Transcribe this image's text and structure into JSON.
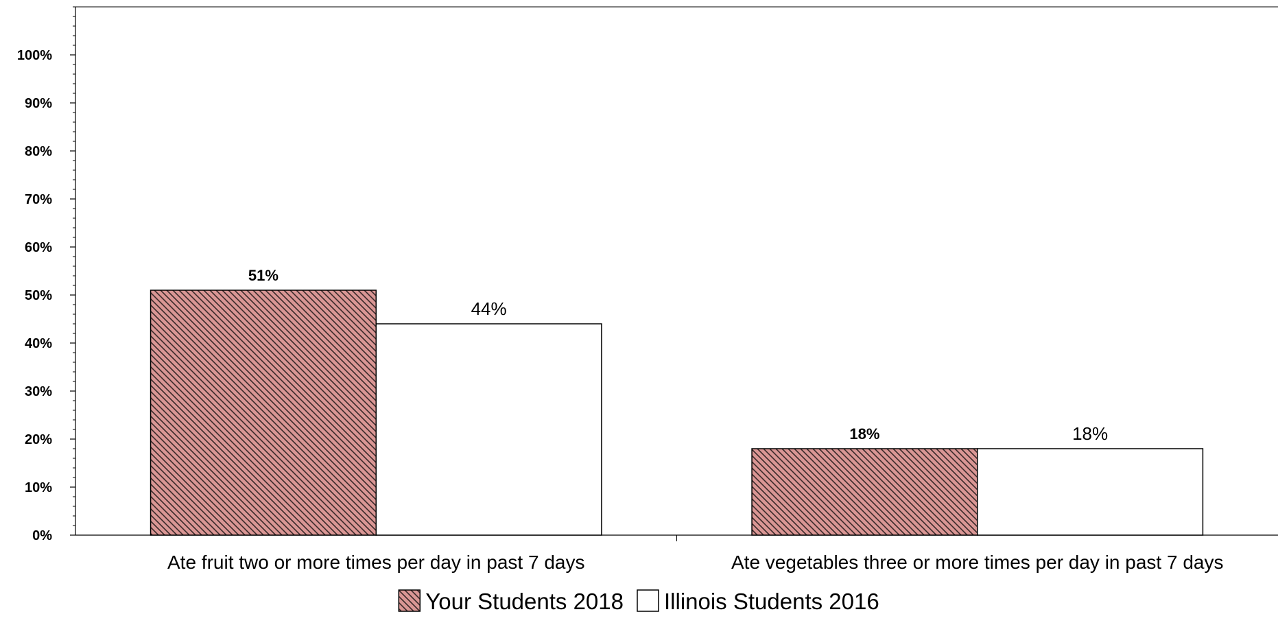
{
  "chart_data": {
    "type": "bar",
    "categories": [
      "Ate fruit two or more times per day in past 7 days",
      "Ate vegetables three or more times per day in past 7 days"
    ],
    "series": [
      {
        "name": "Your Students 2018",
        "values": [
          51,
          18
        ],
        "labels": [
          "51%",
          "18%"
        ],
        "fill": "#d99694",
        "pattern": "diagonal-hatch",
        "label_style": "bold"
      },
      {
        "name": "Illinois Students 2016",
        "values": [
          44,
          18
        ],
        "labels": [
          "44%",
          "18%"
        ],
        "fill": "#ffffff",
        "pattern": "none",
        "label_style": "normal"
      }
    ],
    "yticks": [
      "0%",
      "10%",
      "20%",
      "30%",
      "40%",
      "50%",
      "60%",
      "70%",
      "80%",
      "90%",
      "100%"
    ],
    "ylim": [
      0,
      110
    ],
    "legend_position": "bottom-center",
    "grid": false,
    "colors": {
      "hatch_fill": "#d99694",
      "hatch_line": "#3a2a2a",
      "outline": "#000000"
    }
  }
}
